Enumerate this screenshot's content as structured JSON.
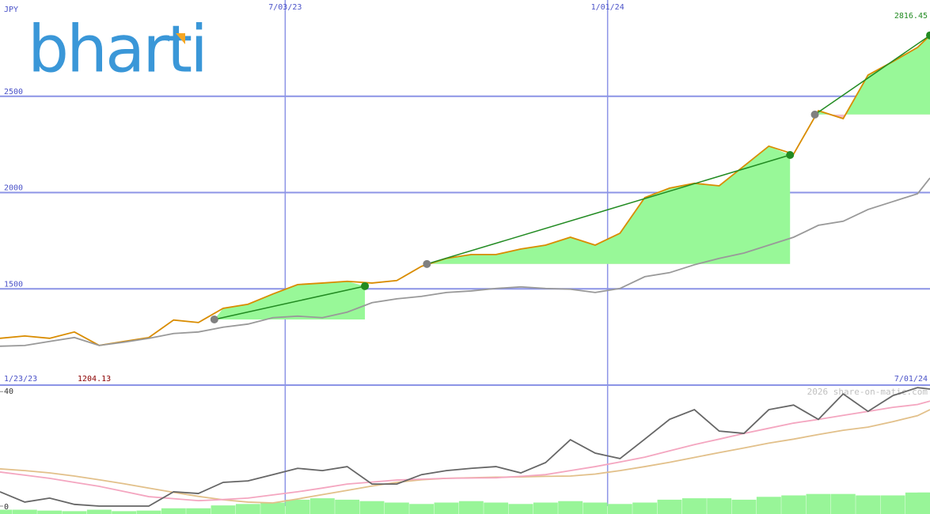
{
  "logo": "bharti",
  "chart_data": [
    {
      "type": "line",
      "unit_label": "JPY",
      "x": [
        "2023-01-23",
        "2023-02-06",
        "2023-02-20",
        "2023-03-06",
        "2023-03-20",
        "2023-04-03",
        "2023-04-17",
        "2023-05-01",
        "2023-05-15",
        "2023-05-29",
        "2023-06-12",
        "2023-06-26",
        "2023-07-10",
        "2023-07-24",
        "2023-08-07",
        "2023-08-21",
        "2023-09-04",
        "2023-09-18",
        "2023-10-02",
        "2023-10-16",
        "2023-10-30",
        "2023-11-13",
        "2023-11-27",
        "2023-12-11",
        "2023-12-25",
        "2024-01-08",
        "2024-01-22",
        "2024-02-05",
        "2024-02-19",
        "2024-03-04",
        "2024-03-18",
        "2024-04-01",
        "2024-04-15",
        "2024-04-29",
        "2024-05-13",
        "2024-05-27",
        "2024-06-10",
        "2024-06-24",
        "2024-07-01"
      ],
      "xlim": [
        "2023-01-23",
        "2024-07-01"
      ],
      "xlim_labels": [
        "1/23/23",
        "7/01/24"
      ],
      "xticks": [
        {
          "value": "2023-07-03",
          "label": "7/03/23"
        },
        {
          "value": "2024-01-01",
          "label": "1/01/24"
        }
      ],
      "ylim": [
        1000,
        3000
      ],
      "yticks": [
        1500,
        2000,
        2500
      ],
      "grid": true,
      "low": 1204.13,
      "series": [
        {
          "color": "#d98c00",
          "values": [
            1243,
            1255,
            1243,
            1276,
            1206,
            1227,
            1247,
            1338,
            1325,
            1399,
            1420,
            1473,
            1522,
            1530,
            1539,
            1530,
            1543,
            1617,
            1658,
            1678,
            1678,
            1707,
            1727,
            1768,
            1727,
            1789,
            1974,
            2023,
            2048,
            2035,
            2138,
            2241,
            2200,
            2425,
            2384,
            2610,
            2680,
            2754,
            2816.45
          ]
        },
        {
          "color": "#999999",
          "values": [
            1202,
            1206,
            1227,
            1247,
            1206,
            1223,
            1243,
            1268,
            1276,
            1301,
            1317,
            1350,
            1358,
            1350,
            1379,
            1428,
            1448,
            1461,
            1481,
            1489,
            1502,
            1510,
            1502,
            1498,
            1481,
            1502,
            1563,
            1584,
            1625,
            1658,
            1686,
            1727,
            1768,
            1830,
            1851,
            1912,
            1953,
            1994,
            2076
          ]
        }
      ],
      "trends": [
        {
          "x0": "2023-05-24",
          "y0": 1341,
          "x1": "2023-08-17",
          "y1": 1514
        },
        {
          "x0": "2023-09-21",
          "y0": 1629,
          "x1": "2024-04-13",
          "y1": 2195
        },
        {
          "x0": "2024-04-27",
          "y0": 2405,
          "x1": "2024-07-01",
          "y1": 2816.45
        }
      ],
      "trend_color": "#228b22",
      "fill_up": "#98f898",
      "fill_down": "#f7b8c8",
      "watermark": "2026 share-on-matic.com"
    },
    {
      "type": "line",
      "ylim": [
        0,
        42
      ],
      "yticks": [
        0,
        40
      ],
      "series": [
        {
          "type": "bar",
          "color": "#98f598",
          "values": [
            1.5,
            1.5,
            1.2,
            1.0,
            1.5,
            1.0,
            1.2,
            2.0,
            2.0,
            3.0,
            3.5,
            4.0,
            5.0,
            5.5,
            5.0,
            4.5,
            4.0,
            3.5,
            4.0,
            4.5,
            4.0,
            3.5,
            4.0,
            4.5,
            4.0,
            3.5,
            4.0,
            5.0,
            5.5,
            5.5,
            5.0,
            6.0,
            6.5,
            7.0,
            7.0,
            6.5,
            6.5,
            7.5,
            7.5
          ]
        },
        {
          "color": "#e2c08a",
          "values": [
            13.0,
            12.4,
            11.6,
            10.5,
            9.2,
            7.8,
            6.3,
            4.8,
            3.4,
            2.2,
            1.4,
            1.1,
            2.5,
            4.0,
            5.5,
            7.0,
            8.3,
            9.2,
            9.7,
            9.9,
            10.1,
            10.2,
            10.4,
            10.5,
            11.2,
            12.4,
            13.8,
            15.3,
            17.0,
            18.7,
            20.3,
            22.0,
            23.4,
            25.0,
            26.5,
            27.6,
            29.5,
            31.6,
            33.7
          ]
        },
        {
          "color": "#f4a6c0",
          "values": [
            11.9,
            10.8,
            9.7,
            8.3,
            6.9,
            5.1,
            3.3,
            2.6,
            1.9,
            2.3,
            2.8,
            3.9,
            5.0,
            6.3,
            7.7,
            8.4,
            9.1,
            9.4,
            9.7,
            9.8,
            9.9,
            10.4,
            11.0,
            12.4,
            13.8,
            15.4,
            17.1,
            19.3,
            21.5,
            23.4,
            25.4,
            27.2,
            29.0,
            30.3,
            31.7,
            33.1,
            34.5,
            35.5,
            36.7
          ]
        },
        {
          "color": "#666666",
          "values": [
            5.0,
            1.4,
            2.8,
            0.6,
            0,
            0,
            0,
            5.0,
            4.4,
            8.3,
            8.8,
            11.0,
            13.2,
            12.4,
            13.8,
            7.7,
            7.7,
            11.0,
            12.4,
            13.2,
            13.8,
            11.6,
            15.2,
            23.2,
            18.5,
            16.6,
            23.4,
            30.3,
            33.7,
            26.2,
            25.4,
            33.7,
            35.3,
            30.3,
            39.2,
            33.1,
            38.6,
            41.4,
            40.9
          ]
        }
      ]
    }
  ]
}
